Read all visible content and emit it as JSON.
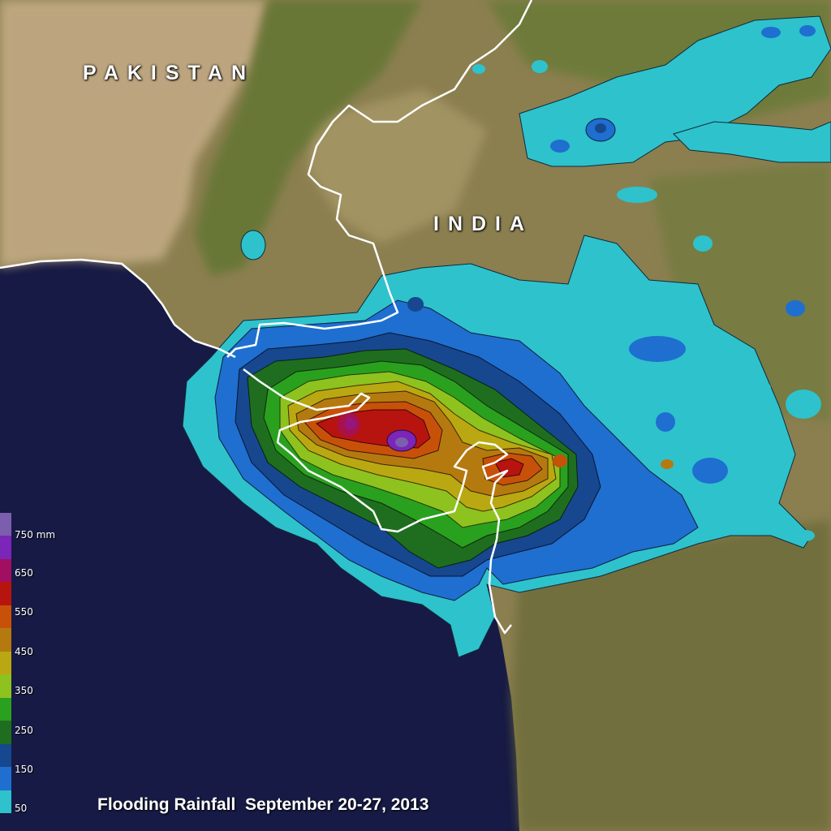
{
  "map": {
    "title": "Flooding Rainfall  September 20-27, 2013",
    "country_labels": {
      "pakistan": "PAKISTAN",
      "india": "INDIA"
    },
    "legend": {
      "unit_label": "750 mm",
      "labels": [
        "650",
        "550",
        "450",
        "350",
        "250",
        "150",
        "50"
      ],
      "colors": [
        "#2ec2cc",
        "#1e6fd0",
        "#17478f",
        "#1f6e1f",
        "#2aa01f",
        "#8ec21f",
        "#b9a811",
        "#b57a0f",
        "#c8510a",
        "#b8140f",
        "#a10f62",
        "#7b26b8",
        "#7b5fae"
      ]
    },
    "colors": {
      "ocean": "#161a44",
      "land": "#8e8250",
      "desert": "#c2aa84",
      "vegetation": "#5a6e2a",
      "border": "#ffffff"
    }
  }
}
